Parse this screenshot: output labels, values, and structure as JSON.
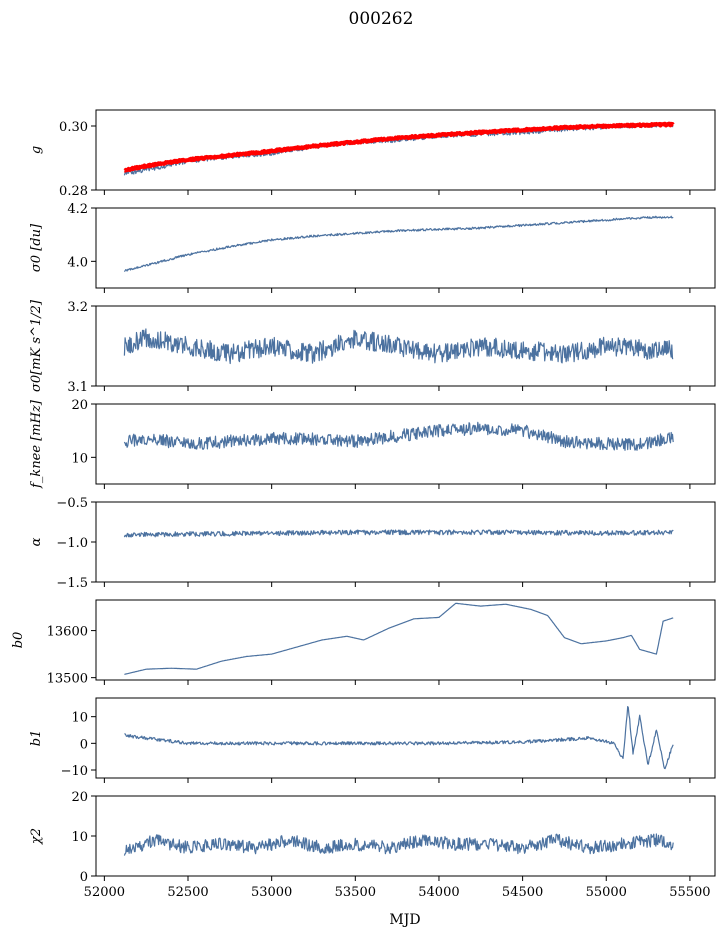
{
  "figure_title": "000262",
  "x_axis": {
    "label": "MJD",
    "lim": [
      51950,
      55650
    ],
    "ticks": [
      52000,
      52500,
      53000,
      53500,
      54000,
      54500,
      55000,
      55500
    ],
    "tick_labels": [
      "52000",
      "52500",
      "53000",
      "53500",
      "54000",
      "54500",
      "55000",
      "55500"
    ]
  },
  "chart_data": [
    {
      "type": "line",
      "ylabel": "g",
      "ylim": [
        0.28,
        0.305
      ],
      "yticks": [
        0.28,
        0.3
      ],
      "ytick_labels": [
        "0.28",
        "0.30"
      ],
      "colors": {
        "data": "#4c72a0",
        "model": "#ff0000"
      },
      "series": [
        {
          "x": [
            52120,
            52250,
            52500,
            52750,
            53000,
            53250,
            53500,
            53750,
            54000,
            54250,
            54500,
            54750,
            55000,
            55250,
            55400
          ],
          "values": [
            0.2853,
            0.2863,
            0.289,
            0.2905,
            0.2915,
            0.2935,
            0.295,
            0.2955,
            0.297,
            0.2975,
            0.298,
            0.299,
            0.2998,
            0.3002,
            0.3004
          ]
        },
        {
          "x": [
            52120,
            52250,
            52500,
            52750,
            53000,
            53250,
            53500,
            53750,
            54000,
            54250,
            54500,
            54750,
            55000,
            55250,
            55400
          ],
          "values": [
            0.2862,
            0.2875,
            0.2895,
            0.2908,
            0.2922,
            0.2937,
            0.295,
            0.2962,
            0.2972,
            0.298,
            0.2988,
            0.2995,
            0.3,
            0.3003,
            0.3005
          ]
        }
      ]
    },
    {
      "type": "line",
      "ylabel": "σ0 [du]",
      "ylim": [
        3.9,
        4.2
      ],
      "yticks": [
        4.0,
        4.2
      ],
      "ytick_labels": [
        "4.0",
        "4.2"
      ],
      "series": [
        {
          "x": [
            52120,
            52250,
            52500,
            52750,
            53000,
            53250,
            53500,
            53750,
            54000,
            54250,
            54500,
            54750,
            55000,
            55250,
            55400
          ],
          "values": [
            3.965,
            3.985,
            4.025,
            4.055,
            4.08,
            4.095,
            4.105,
            4.115,
            4.12,
            4.125,
            4.135,
            4.145,
            4.155,
            4.165,
            4.165
          ]
        }
      ]
    },
    {
      "type": "line",
      "ylabel": "σ0[mK s^1/2]",
      "ylim": [
        3.1,
        3.2
      ],
      "yticks": [
        3.1,
        3.2
      ],
      "ytick_labels": [
        "3.1",
        "3.2"
      ],
      "series": [
        {
          "x": [
            52120,
            52250,
            52500,
            52750,
            53000,
            53250,
            53500,
            53750,
            54000,
            54250,
            54500,
            54750,
            55000,
            55250,
            55400
          ],
          "values": [
            3.15,
            3.16,
            3.15,
            3.14,
            3.15,
            3.14,
            3.16,
            3.15,
            3.14,
            3.15,
            3.145,
            3.14,
            3.15,
            3.145,
            3.145
          ]
        }
      ]
    },
    {
      "type": "line",
      "ylabel": "f_knee [mHz]",
      "ylim": [
        5,
        20
      ],
      "yticks": [
        10,
        20
      ],
      "ytick_labels": [
        "10",
        "20"
      ],
      "series": [
        {
          "x": [
            52120,
            52250,
            52500,
            52750,
            53000,
            53250,
            53500,
            53750,
            54000,
            54250,
            54500,
            54750,
            55000,
            55250,
            55400
          ],
          "values": [
            13,
            13.5,
            12.5,
            13,
            13.5,
            13.5,
            13,
            14,
            15,
            15.5,
            15,
            13,
            12.5,
            12.5,
            14
          ]
        }
      ]
    },
    {
      "type": "line",
      "ylabel": "α",
      "ylim": [
        -1.5,
        -0.5
      ],
      "yticks": [
        -1.5,
        -1.0,
        -0.5
      ],
      "ytick_labels": [
        "−1.5",
        "−1.0",
        "−0.5"
      ],
      "series": [
        {
          "x": [
            52120,
            52500,
            53000,
            53500,
            54000,
            54500,
            55000,
            55400
          ],
          "values": [
            -0.91,
            -0.9,
            -0.89,
            -0.88,
            -0.88,
            -0.88,
            -0.89,
            -0.88
          ]
        }
      ]
    },
    {
      "type": "line",
      "ylabel": "b0",
      "ylim": [
        13495,
        13665
      ],
      "yticks": [
        13500,
        13600
      ],
      "ytick_labels": [
        "13500",
        "13600"
      ],
      "series": [
        {
          "x": [
            52120,
            52250,
            52400,
            52550,
            52700,
            52850,
            53000,
            53150,
            53300,
            53450,
            53550,
            53700,
            53850,
            54000,
            54100,
            54250,
            54400,
            54550,
            54650,
            54750,
            54850,
            55000,
            55100,
            55150,
            55200,
            55250,
            55300,
            55340,
            55400
          ],
          "values": [
            13507,
            13518,
            13520,
            13518,
            13535,
            13545,
            13550,
            13565,
            13580,
            13588,
            13580,
            13605,
            13625,
            13628,
            13658,
            13652,
            13656,
            13645,
            13632,
            13585,
            13572,
            13578,
            13585,
            13590,
            13560,
            13555,
            13550,
            13620,
            13627
          ]
        }
      ]
    },
    {
      "type": "line",
      "ylabel": "b1",
      "ylim": [
        -13,
        17
      ],
      "yticks": [
        -10,
        0,
        10
      ],
      "ytick_labels": [
        "−10",
        "0",
        "10"
      ],
      "series": [
        {
          "x": [
            52120,
            52500,
            53000,
            53500,
            54000,
            54500,
            54900,
            55050,
            55100,
            55130,
            55160,
            55200,
            55250,
            55300,
            55350,
            55400
          ],
          "values": [
            3,
            0,
            0,
            0,
            0,
            0.5,
            2,
            0,
            -6,
            15,
            -4,
            10,
            -8,
            5,
            -10,
            0
          ]
        }
      ]
    },
    {
      "type": "line",
      "ylabel": "χ2",
      "ylim": [
        0,
        20
      ],
      "yticks": [
        0,
        10,
        20
      ],
      "ytick_labels": [
        "0",
        "10",
        "20"
      ],
      "series": [
        {
          "x": [
            52120,
            52300,
            52500,
            52700,
            52900,
            53100,
            53300,
            53500,
            53700,
            53900,
            54100,
            54300,
            54500,
            54700,
            54900,
            55100,
            55300,
            55400
          ],
          "values": [
            6,
            9,
            7,
            8,
            7,
            9,
            7,
            8,
            7,
            9,
            8,
            8,
            7,
            9,
            7,
            8,
            9,
            8
          ]
        }
      ]
    }
  ]
}
